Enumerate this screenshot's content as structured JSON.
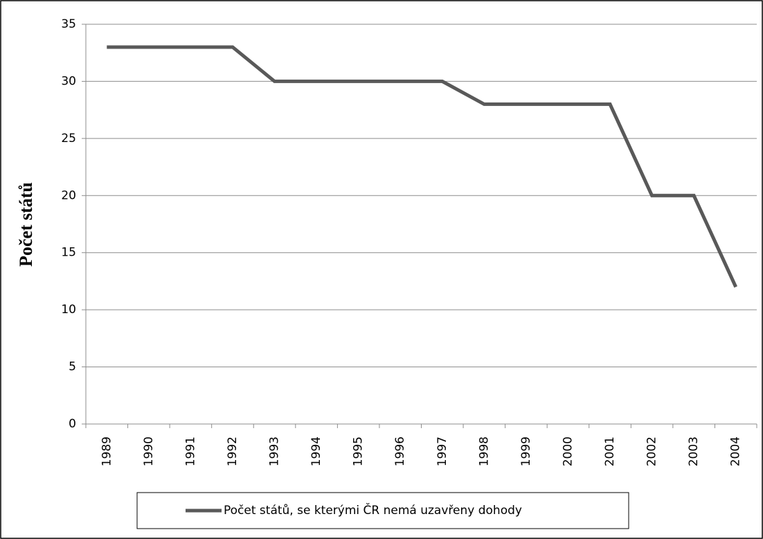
{
  "chart_data": {
    "type": "line",
    "y_label": "Počet států",
    "categories": [
      "1989",
      "1990",
      "1991",
      "1992",
      "1993",
      "1994",
      "1995",
      "1996",
      "1997",
      "1998",
      "1999",
      "2000",
      "2001",
      "2002",
      "2003",
      "2004"
    ],
    "series": [
      {
        "name": "Počet států, se kterými ČR nemá uzavřeny dohody",
        "color": "#595959",
        "values": [
          33,
          33,
          33,
          33,
          30,
          30,
          30,
          30,
          30,
          28,
          28,
          28,
          28,
          20,
          20,
          12
        ]
      }
    ],
    "ylim": [
      0,
      35
    ],
    "yticks": [
      0,
      5,
      10,
      15,
      20,
      25,
      30,
      35
    ],
    "grid": true,
    "legend": "bottom"
  }
}
